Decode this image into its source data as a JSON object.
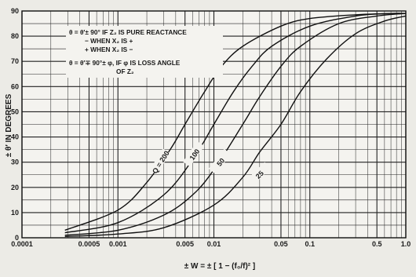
{
  "chart_data": {
    "type": "line",
    "x_scale": "log",
    "xlim": [
      0.0001,
      1.0
    ],
    "ylim": [
      0,
      90
    ],
    "grid": true,
    "x_ticks": [
      {
        "value": 0.0001,
        "label": "0.0001"
      },
      {
        "value": 0.0005,
        "label": "0.0005"
      },
      {
        "value": 0.001,
        "label": "0.001"
      },
      {
        "value": 0.005,
        "label": "0.005"
      },
      {
        "value": 0.01,
        "label": "0.01"
      },
      {
        "value": 0.05,
        "label": "0.05"
      },
      {
        "value": 0.1,
        "label": "0.1"
      },
      {
        "value": 0.5,
        "label": "0.5"
      },
      {
        "value": 1.0,
        "label": "1.0"
      }
    ],
    "y_ticks": [
      0,
      10,
      20,
      30,
      40,
      50,
      60,
      70,
      80,
      90
    ],
    "xlabel": "± W = ± [ 1 − (f₀/f)² ]",
    "ylabel": "± θ′ IN DEGREES",
    "annotation_lines": [
      "θ = θ′± 90° IF Z₂ IS PURE REACTANCE",
      "− WHEN X₂ IS +",
      "+ WHEN X₂ IS −",
      "θ = θ′∓ 90°± φ, IF φ IS LOSS ANGLE",
      "OF Z₂"
    ],
    "series": [
      {
        "label": "Q = 200",
        "x": [
          0.00028,
          0.001,
          0.002,
          0.0035,
          0.005,
          0.008,
          0.012,
          0.02,
          0.05,
          0.1,
          0.3,
          0.7,
          1.0
        ],
        "y": [
          3,
          11,
          22,
          35,
          45,
          58,
          68,
          76,
          84,
          87,
          88.5,
          89,
          89
        ]
      },
      {
        "label": "100",
        "x": [
          0.00028,
          0.001,
          0.003,
          0.006,
          0.01,
          0.016,
          0.025,
          0.04,
          0.1,
          0.3,
          0.7,
          1.0
        ],
        "y": [
          2,
          6,
          17,
          31,
          45,
          58,
          68,
          76,
          84,
          88,
          89,
          89
        ]
      },
      {
        "label": "50",
        "x": [
          0.00028,
          0.001,
          0.003,
          0.006,
          0.01,
          0.02,
          0.03,
          0.05,
          0.08,
          0.2,
          0.5,
          1.0
        ],
        "y": [
          1,
          3,
          9,
          17,
          27,
          45,
          56,
          68,
          76,
          85,
          88,
          89
        ]
      },
      {
        "label": "25",
        "x": [
          0.00028,
          0.001,
          0.003,
          0.01,
          0.02,
          0.03,
          0.05,
          0.08,
          0.15,
          0.3,
          0.6,
          1.0
        ],
        "y": [
          0.5,
          1.5,
          4,
          13,
          24,
          34,
          45,
          58,
          71,
          81,
          86,
          88
        ]
      }
    ]
  }
}
